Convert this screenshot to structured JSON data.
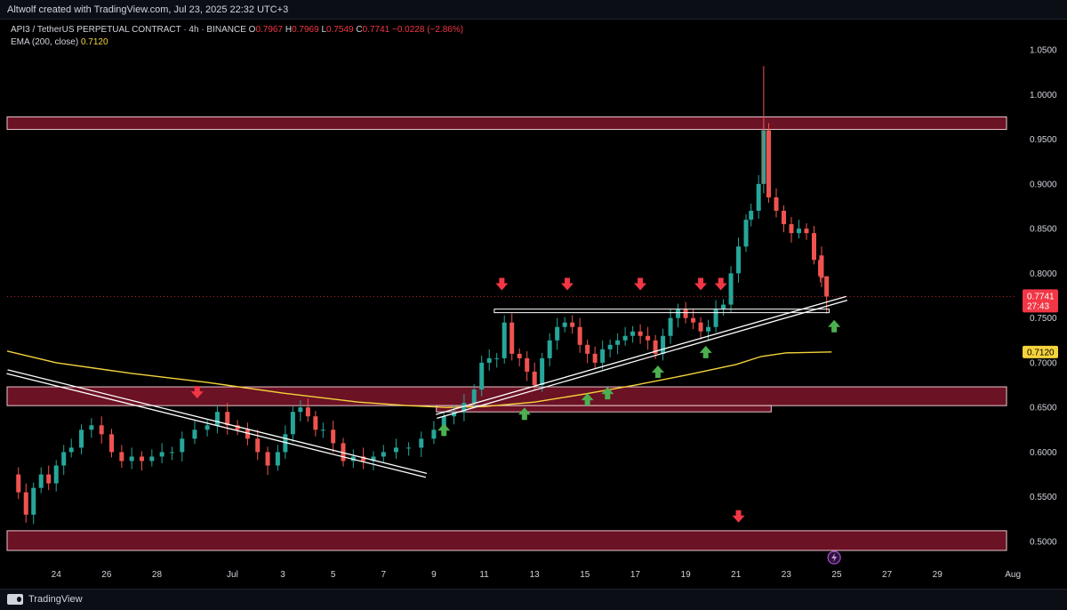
{
  "header": {
    "title": "Altwolf created with TradingView.com, Jul 23, 2025 22:32 UTC+3"
  },
  "legend": {
    "symbol": "API3 / TetherUS PERPETUAL CONTRACT · 4h · BINANCE",
    "open_label": "O",
    "open": "0.7967",
    "high_label": "H",
    "high": "0.7969",
    "low_label": "L",
    "low": "0.7549",
    "close_label": "C",
    "close": "0.7741",
    "change": "−0.0228 (−2.86%)",
    "ema_label": "EMA (200, close)",
    "ema_value": "0.7120"
  },
  "footer": {
    "brand": "TradingView"
  },
  "colors": {
    "background": "#000000",
    "zone_fill": "#6b1224",
    "bull": "#26a69a",
    "bear": "#ef5350",
    "ema": "#f5d33b",
    "arrow_red": "#f23645",
    "arrow_green": "#4caf50",
    "trendline": "#ffffff"
  },
  "chart_data": {
    "type": "candlestick",
    "timeframe": "4h",
    "ylim": [
      0.49,
      1.07
    ],
    "y_ticks": [
      0.5,
      0.55,
      0.6,
      0.65,
      0.7,
      0.75,
      0.8,
      0.85,
      0.9,
      0.95,
      1.0,
      1.05
    ],
    "y_tick_labels": [
      "0.5000",
      "0.5500",
      "0.6000",
      "0.6500",
      "0.7000",
      "0.7500",
      "0.8000",
      "0.8500",
      "0.9000",
      "0.9500",
      "1.0000",
      "1.0500"
    ],
    "x_ticks": [
      {
        "label": "24",
        "day": 0
      },
      {
        "label": "26",
        "day": 2
      },
      {
        "label": "28",
        "day": 4
      },
      {
        "label": "Jul",
        "day": 7
      },
      {
        "label": "3",
        "day": 9
      },
      {
        "label": "5",
        "day": 11
      },
      {
        "label": "7",
        "day": 13
      },
      {
        "label": "9",
        "day": 15
      },
      {
        "label": "11",
        "day": 17
      },
      {
        "label": "13",
        "day": 19
      },
      {
        "label": "15",
        "day": 21
      },
      {
        "label": "17",
        "day": 23
      },
      {
        "label": "19",
        "day": 25
      },
      {
        "label": "21",
        "day": 27
      },
      {
        "label": "23",
        "day": 29
      },
      {
        "label": "25",
        "day": 31
      },
      {
        "label": "27",
        "day": 33
      },
      {
        "label": "29",
        "day": 35
      },
      {
        "label": "Aug",
        "day": 38
      }
    ],
    "x_domain_days": [
      -1.95,
      38.1
    ],
    "price_path": [
      [
        -1.8,
        0.575
      ],
      [
        -1.5,
        0.555
      ],
      [
        -1.2,
        0.53
      ],
      [
        -0.9,
        0.56
      ],
      [
        -0.6,
        0.575
      ],
      [
        -0.3,
        0.565
      ],
      [
        0.0,
        0.585
      ],
      [
        0.3,
        0.6
      ],
      [
        0.6,
        0.605
      ],
      [
        1.0,
        0.625
      ],
      [
        1.4,
        0.63
      ],
      [
        1.8,
        0.62
      ],
      [
        2.2,
        0.6
      ],
      [
        2.6,
        0.59
      ],
      [
        3.0,
        0.595
      ],
      [
        3.4,
        0.59
      ],
      [
        3.8,
        0.595
      ],
      [
        4.2,
        0.6
      ],
      [
        4.6,
        0.6
      ],
      [
        5.0,
        0.615
      ],
      [
        5.5,
        0.625
      ],
      [
        6.0,
        0.63
      ],
      [
        6.4,
        0.645
      ],
      [
        6.8,
        0.63
      ],
      [
        7.2,
        0.625
      ],
      [
        7.6,
        0.615
      ],
      [
        8.0,
        0.6
      ],
      [
        8.4,
        0.585
      ],
      [
        8.8,
        0.6
      ],
      [
        9.1,
        0.62
      ],
      [
        9.4,
        0.645
      ],
      [
        9.7,
        0.65
      ],
      [
        10.0,
        0.64
      ],
      [
        10.3,
        0.625
      ],
      [
        10.6,
        0.625
      ],
      [
        11.0,
        0.61
      ],
      [
        11.4,
        0.59
      ],
      [
        11.8,
        0.595
      ],
      [
        12.2,
        0.59
      ],
      [
        12.6,
        0.595
      ],
      [
        13.0,
        0.6
      ],
      [
        13.5,
        0.605
      ],
      [
        14.0,
        0.605
      ],
      [
        14.5,
        0.615
      ],
      [
        15.0,
        0.625
      ],
      [
        15.4,
        0.64
      ],
      [
        15.8,
        0.645
      ],
      [
        16.2,
        0.655
      ],
      [
        16.6,
        0.67
      ],
      [
        16.9,
        0.7
      ],
      [
        17.2,
        0.705
      ],
      [
        17.5,
        0.705
      ],
      [
        17.8,
        0.745
      ],
      [
        18.1,
        0.71
      ],
      [
        18.4,
        0.705
      ],
      [
        18.7,
        0.69
      ],
      [
        19.0,
        0.675
      ],
      [
        19.3,
        0.705
      ],
      [
        19.6,
        0.725
      ],
      [
        19.9,
        0.74
      ],
      [
        20.2,
        0.745
      ],
      [
        20.5,
        0.74
      ],
      [
        20.8,
        0.72
      ],
      [
        21.1,
        0.71
      ],
      [
        21.4,
        0.7
      ],
      [
        21.7,
        0.715
      ],
      [
        22.0,
        0.72
      ],
      [
        22.3,
        0.725
      ],
      [
        22.6,
        0.73
      ],
      [
        22.9,
        0.735
      ],
      [
        23.2,
        0.73
      ],
      [
        23.5,
        0.725
      ],
      [
        23.8,
        0.71
      ],
      [
        24.1,
        0.73
      ],
      [
        24.4,
        0.75
      ],
      [
        24.7,
        0.76
      ],
      [
        25.0,
        0.75
      ],
      [
        25.3,
        0.745
      ],
      [
        25.6,
        0.735
      ],
      [
        25.9,
        0.74
      ],
      [
        26.2,
        0.76
      ],
      [
        26.5,
        0.765
      ],
      [
        26.8,
        0.8
      ],
      [
        27.1,
        0.83
      ],
      [
        27.4,
        0.86
      ],
      [
        27.6,
        0.87
      ],
      [
        27.9,
        0.9
      ],
      [
        28.1,
        0.96
      ],
      [
        28.3,
        0.885
      ],
      [
        28.6,
        0.87
      ],
      [
        28.9,
        0.855
      ],
      [
        29.2,
        0.845
      ],
      [
        29.5,
        0.85
      ],
      [
        29.8,
        0.845
      ],
      [
        30.1,
        0.82
      ],
      [
        30.4,
        0.795
      ],
      [
        30.6,
        0.774
      ]
    ],
    "last_candles": [
      {
        "day": 30.1,
        "o": 0.838,
        "h": 0.85,
        "l": 0.81,
        "c": 0.815
      },
      {
        "day": 30.35,
        "o": 0.815,
        "h": 0.82,
        "l": 0.79,
        "c": 0.797
      },
      {
        "day": 30.6,
        "o": 0.7967,
        "h": 0.7969,
        "l": 0.7549,
        "c": 0.7741
      }
    ],
    "ema200": [
      [
        -1.95,
        0.713
      ],
      [
        0,
        0.7
      ],
      [
        3,
        0.688
      ],
      [
        6,
        0.678
      ],
      [
        9,
        0.666
      ],
      [
        12,
        0.656
      ],
      [
        14,
        0.652
      ],
      [
        15.5,
        0.65
      ],
      [
        17,
        0.651
      ],
      [
        19,
        0.656
      ],
      [
        21,
        0.665
      ],
      [
        23,
        0.675
      ],
      [
        25,
        0.686
      ],
      [
        27,
        0.698
      ],
      [
        28,
        0.707
      ],
      [
        29,
        0.711
      ],
      [
        30.8,
        0.712
      ]
    ],
    "zones": [
      {
        "low": 0.961,
        "high": 0.975
      },
      {
        "low": 0.652,
        "high": 0.673
      },
      {
        "low": 0.49,
        "high": 0.512
      }
    ],
    "small_box": {
      "day_start": 15.1,
      "day_end": 28.4,
      "low": 0.645,
      "high": 0.652
    },
    "resistance_line": {
      "day_start": 17.4,
      "day_end": 30.7,
      "price": 0.758
    },
    "descending_trendline": {
      "from": [
        -1.95,
        0.69
      ],
      "to": [
        14.7,
        0.574
      ]
    },
    "ascending_trendline": {
      "from": [
        15.1,
        0.64
      ],
      "to": [
        31.4,
        0.772
      ]
    },
    "arrows": [
      {
        "type": "down",
        "day": 5.6,
        "price": 0.666
      },
      {
        "type": "down",
        "day": 17.7,
        "price": 0.787
      },
      {
        "type": "down",
        "day": 20.3,
        "price": 0.787
      },
      {
        "type": "down",
        "day": 23.2,
        "price": 0.787
      },
      {
        "type": "down",
        "day": 25.6,
        "price": 0.787
      },
      {
        "type": "down",
        "day": 26.4,
        "price": 0.787
      },
      {
        "type": "down",
        "day": 27.1,
        "price": 0.527
      },
      {
        "type": "up",
        "day": 15.4,
        "price": 0.626
      },
      {
        "type": "up",
        "day": 18.6,
        "price": 0.644
      },
      {
        "type": "up",
        "day": 21.1,
        "price": 0.66
      },
      {
        "type": "up",
        "day": 21.9,
        "price": 0.667
      },
      {
        "type": "up",
        "day": 23.9,
        "price": 0.691
      },
      {
        "type": "up",
        "day": 25.8,
        "price": 0.713
      },
      {
        "type": "up",
        "day": 30.9,
        "price": 0.742
      }
    ],
    "current_price": {
      "value": 0.7741,
      "label": "0.7741",
      "countdown": "27:43"
    },
    "ema_badge": {
      "value": 0.712,
      "label": "0.7120"
    },
    "event_icon": {
      "day": 30.9,
      "price": 0.482
    }
  }
}
